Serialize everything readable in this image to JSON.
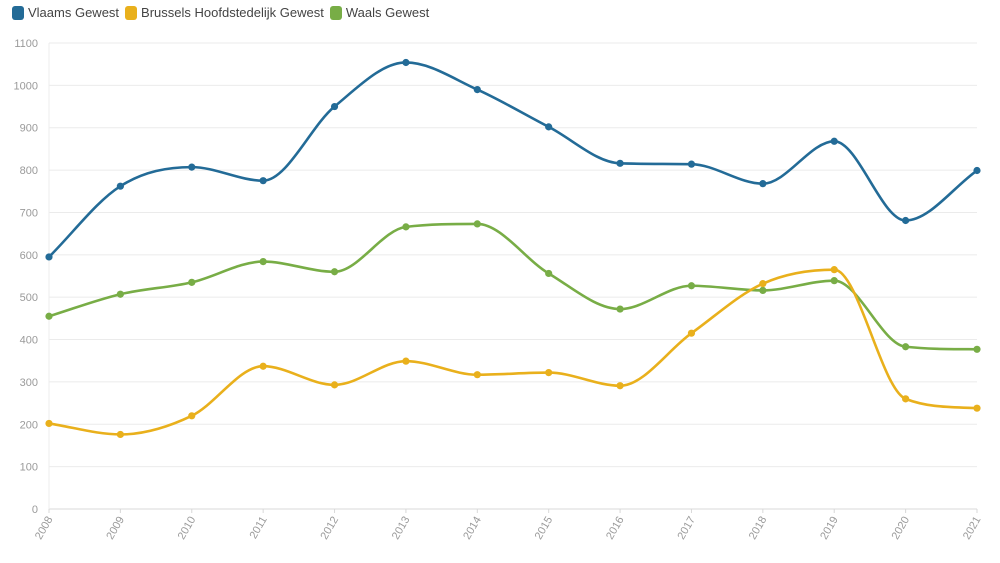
{
  "chart_data": {
    "type": "line",
    "title": "",
    "xlabel": "",
    "ylabel": "",
    "ylim": [
      0,
      1100
    ],
    "yticks": [
      0,
      100,
      200,
      300,
      400,
      500,
      600,
      700,
      800,
      900,
      1000,
      1100
    ],
    "categories": [
      "2008",
      "2009",
      "2010",
      "2011",
      "2012",
      "2013",
      "2014",
      "2015",
      "2016",
      "2017",
      "2018",
      "2019",
      "2020",
      "2021"
    ],
    "legend_position": "top-left",
    "grid": true,
    "series": [
      {
        "name": "Vlaams Gewest",
        "color": "#236b97",
        "values": [
          595,
          762,
          807,
          775,
          950,
          1054,
          990,
          902,
          816,
          814,
          768,
          868,
          681,
          799
        ]
      },
      {
        "name": "Brussels Hoofdstedelijk Gewest",
        "color": "#e9b01c",
        "values": [
          202,
          176,
          220,
          337,
          293,
          349,
          317,
          322,
          291,
          415,
          532,
          565,
          260,
          238
        ]
      },
      {
        "name": "Waals Gewest",
        "color": "#78ad46",
        "values": [
          455,
          507,
          535,
          584,
          560,
          666,
          673,
          556,
          472,
          527,
          516,
          539,
          383,
          377
        ]
      }
    ]
  }
}
